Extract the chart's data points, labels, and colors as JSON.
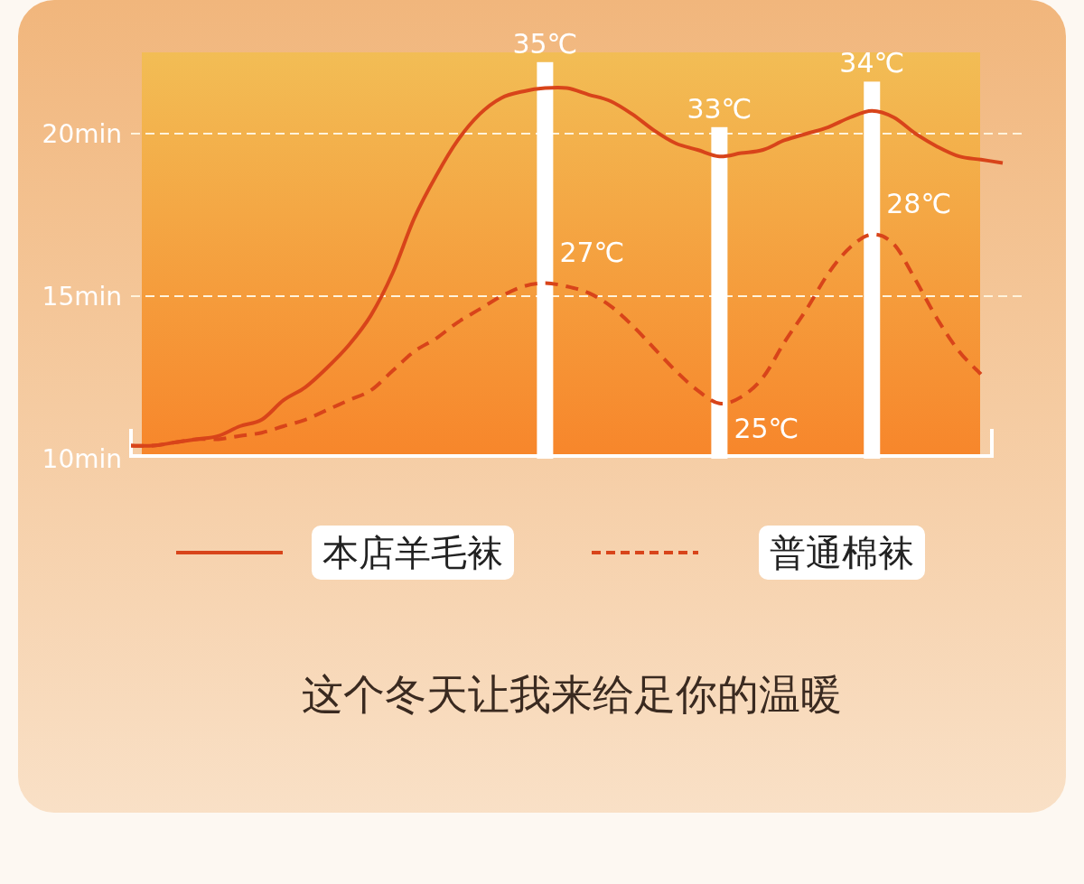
{
  "chart_data": {
    "type": "line",
    "title": "这个冬天让我来给足你的温暖",
    "categories": [
      null,
      null,
      null,
      null,
      null,
      null,
      null,
      null,
      null,
      null,
      null,
      null,
      null,
      null,
      null,
      null,
      null,
      null,
      null,
      null,
      null,
      null,
      null,
      null,
      null,
      null,
      null,
      null,
      null,
      null,
      null,
      null,
      null,
      null,
      null,
      null,
      null,
      null,
      null,
      null,
      null
    ],
    "ylim": [
      10,
      22.5
    ],
    "yticks": [
      {
        "value": 10,
        "label": "10min"
      },
      {
        "value": 15,
        "label": "15min"
      },
      {
        "value": 20,
        "label": "20min"
      }
    ],
    "grid": "y",
    "legend": "bottom",
    "marker": "none",
    "annotations": [
      "35℃",
      "33℃",
      "34℃",
      "27℃",
      "25℃",
      "28℃"
    ],
    "series": [
      {
        "type": "bar",
        "color": "#ffffff",
        "values": [
          null,
          null,
          null,
          null,
          null,
          null,
          null,
          null,
          null,
          null,
          null,
          null,
          null,
          null,
          null,
          null,
          null,
          null,
          null,
          22.2,
          null,
          null,
          null,
          null,
          null,
          null,
          null,
          20.2,
          null,
          null,
          null,
          null,
          null,
          null,
          21.6,
          null,
          null,
          null,
          null,
          null,
          null
        ]
      },
      {
        "name": "本店羊毛袜",
        "color": "#d8441a",
        "line_style": "solid",
        "values": [
          10.4,
          10.4,
          10.5,
          10.6,
          10.7,
          11.0,
          11.2,
          11.8,
          12.2,
          12.8,
          13.5,
          14.4,
          15.7,
          17.4,
          18.7,
          19.8,
          20.6,
          21.1,
          21.3,
          21.4,
          21.4,
          21.2,
          21.0,
          20.6,
          20.1,
          19.7,
          19.5,
          19.3,
          19.4,
          19.5,
          19.8,
          20.0,
          20.2,
          20.5,
          20.7,
          20.5,
          20.0,
          19.6,
          19.3,
          19.2,
          19.1
        ]
      },
      {
        "name": "普通棉袜",
        "color": "#d8441a",
        "line_style": "dashed",
        "values": [
          10.4,
          10.4,
          10.5,
          10.6,
          10.6,
          10.7,
          10.8,
          11.0,
          11.2,
          11.5,
          11.8,
          12.1,
          12.7,
          13.3,
          13.7,
          14.2,
          14.6,
          15.0,
          15.3,
          15.4,
          15.3,
          15.1,
          14.7,
          14.1,
          13.4,
          12.7,
          12.1,
          11.7,
          11.9,
          12.5,
          13.6,
          14.6,
          15.7,
          16.5,
          16.9,
          16.6,
          15.5,
          14.3,
          13.3,
          12.6,
          null
        ]
      }
    ]
  }
}
